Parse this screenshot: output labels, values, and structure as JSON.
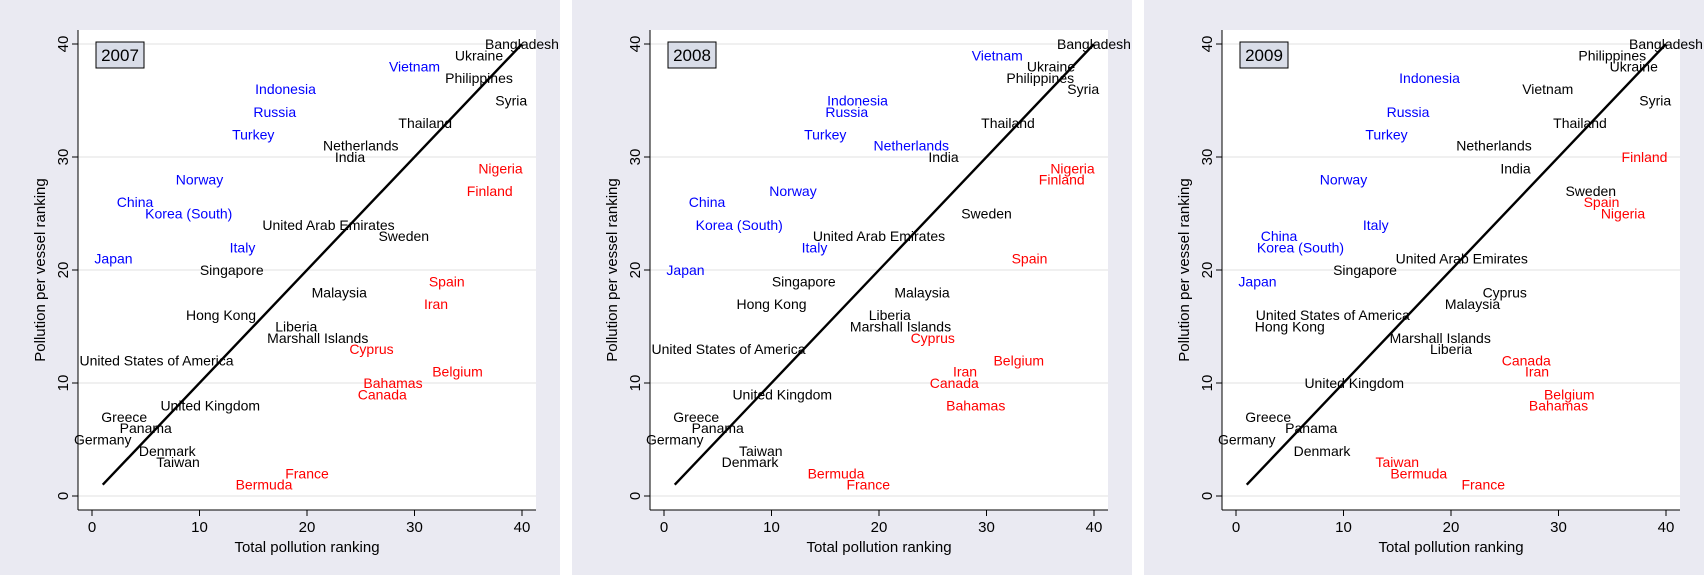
{
  "colors": {
    "background": "#eaeaf2",
    "plot": "#ffffff",
    "grid": "#e0e0e0",
    "black": "#000000",
    "blue": "#0000ff",
    "red": "#ff0000"
  },
  "chart_data": [
    {
      "type": "scatter",
      "panel_label": "2007",
      "xlabel": "Total pollution ranking",
      "ylabel": "Pollution per vessel ranking",
      "xlim": [
        0,
        40
      ],
      "ylim": [
        0,
        40
      ],
      "xticks": [
        0,
        10,
        20,
        30,
        40
      ],
      "yticks": [
        0,
        10,
        20,
        30,
        40
      ],
      "grid": true,
      "reference_line": [
        [
          1,
          1
        ],
        [
          40,
          40
        ]
      ],
      "points": [
        {
          "label": "Bangladesh",
          "x": 40,
          "y": 40,
          "color": "black"
        },
        {
          "label": "Ukraine",
          "x": 36,
          "y": 39,
          "color": "black"
        },
        {
          "label": "Vietnam",
          "x": 30,
          "y": 38,
          "color": "blue"
        },
        {
          "label": "Philippines",
          "x": 36,
          "y": 37,
          "color": "black"
        },
        {
          "label": "Indonesia",
          "x": 18,
          "y": 36,
          "color": "blue"
        },
        {
          "label": "Syria",
          "x": 39,
          "y": 35,
          "color": "black"
        },
        {
          "label": "Russia",
          "x": 17,
          "y": 34,
          "color": "blue"
        },
        {
          "label": "Thailand",
          "x": 31,
          "y": 33,
          "color": "black"
        },
        {
          "label": "Turkey",
          "x": 15,
          "y": 32,
          "color": "blue"
        },
        {
          "label": "Netherlands",
          "x": 25,
          "y": 31,
          "color": "black"
        },
        {
          "label": "India",
          "x": 24,
          "y": 30,
          "color": "black"
        },
        {
          "label": "Nigeria",
          "x": 38,
          "y": 29,
          "color": "red"
        },
        {
          "label": "Norway",
          "x": 10,
          "y": 28,
          "color": "blue"
        },
        {
          "label": "Finland",
          "x": 37,
          "y": 27,
          "color": "red"
        },
        {
          "label": "China",
          "x": 4,
          "y": 26,
          "color": "blue"
        },
        {
          "label": "Korea (South)",
          "x": 9,
          "y": 25,
          "color": "blue"
        },
        {
          "label": "United Arab Emirates",
          "x": 22,
          "y": 24,
          "color": "black"
        },
        {
          "label": "Sweden",
          "x": 29,
          "y": 23,
          "color": "black"
        },
        {
          "label": "Italy",
          "x": 14,
          "y": 22,
          "color": "blue"
        },
        {
          "label": "Japan",
          "x": 2,
          "y": 21,
          "color": "blue"
        },
        {
          "label": "Singapore",
          "x": 13,
          "y": 20,
          "color": "black"
        },
        {
          "label": "Spain",
          "x": 33,
          "y": 19,
          "color": "red"
        },
        {
          "label": "Malaysia",
          "x": 23,
          "y": 18,
          "color": "black"
        },
        {
          "label": "Iran",
          "x": 32,
          "y": 17,
          "color": "red"
        },
        {
          "label": "Hong Kong",
          "x": 12,
          "y": 16,
          "color": "black"
        },
        {
          "label": "Liberia",
          "x": 19,
          "y": 15,
          "color": "black"
        },
        {
          "label": "Marshall Islands",
          "x": 21,
          "y": 14,
          "color": "black"
        },
        {
          "label": "Cyprus",
          "x": 26,
          "y": 13,
          "color": "red"
        },
        {
          "label": "United States of America",
          "x": 6,
          "y": 12,
          "color": "black"
        },
        {
          "label": "Belgium",
          "x": 34,
          "y": 11,
          "color": "red"
        },
        {
          "label": "Bahamas",
          "x": 28,
          "y": 10,
          "color": "red"
        },
        {
          "label": "Canada",
          "x": 27,
          "y": 9,
          "color": "red"
        },
        {
          "label": "United Kingdom",
          "x": 11,
          "y": 8,
          "color": "black"
        },
        {
          "label": "Greece",
          "x": 3,
          "y": 7,
          "color": "black"
        },
        {
          "label": "Panama",
          "x": 5,
          "y": 6,
          "color": "black"
        },
        {
          "label": "Germany",
          "x": 1,
          "y": 5,
          "color": "black"
        },
        {
          "label": "Denmark",
          "x": 7,
          "y": 4,
          "color": "black"
        },
        {
          "label": "Taiwan",
          "x": 8,
          "y": 3,
          "color": "black"
        },
        {
          "label": "France",
          "x": 20,
          "y": 2,
          "color": "red"
        },
        {
          "label": "Bermuda",
          "x": 16,
          "y": 1,
          "color": "red"
        }
      ]
    },
    {
      "type": "scatter",
      "panel_label": "2008",
      "xlabel": "Total pollution ranking",
      "ylabel": "Pollution per vessel ranking",
      "xlim": [
        0,
        40
      ],
      "ylim": [
        0,
        40
      ],
      "xticks": [
        0,
        10,
        20,
        30,
        40
      ],
      "yticks": [
        0,
        10,
        20,
        30,
        40
      ],
      "grid": true,
      "reference_line": [
        [
          1,
          1
        ],
        [
          40,
          40
        ]
      ],
      "points": [
        {
          "label": "Bangladesh",
          "x": 40,
          "y": 40,
          "color": "black"
        },
        {
          "label": "Vietnam",
          "x": 31,
          "y": 39,
          "color": "blue"
        },
        {
          "label": "Ukraine",
          "x": 36,
          "y": 38,
          "color": "black"
        },
        {
          "label": "Philippines",
          "x": 35,
          "y": 37,
          "color": "black"
        },
        {
          "label": "Syria",
          "x": 39,
          "y": 36,
          "color": "black"
        },
        {
          "label": "Indonesia",
          "x": 18,
          "y": 35,
          "color": "blue"
        },
        {
          "label": "Russia",
          "x": 17,
          "y": 34,
          "color": "blue"
        },
        {
          "label": "Thailand",
          "x": 32,
          "y": 33,
          "color": "black"
        },
        {
          "label": "Turkey",
          "x": 15,
          "y": 32,
          "color": "blue"
        },
        {
          "label": "Netherlands",
          "x": 23,
          "y": 31,
          "color": "blue"
        },
        {
          "label": "India",
          "x": 26,
          "y": 30,
          "color": "black"
        },
        {
          "label": "Nigeria",
          "x": 38,
          "y": 29,
          "color": "red"
        },
        {
          "label": "Finland",
          "x": 37,
          "y": 28,
          "color": "red"
        },
        {
          "label": "Norway",
          "x": 12,
          "y": 27,
          "color": "blue"
        },
        {
          "label": "China",
          "x": 4,
          "y": 26,
          "color": "blue"
        },
        {
          "label": "Sweden",
          "x": 30,
          "y": 25,
          "color": "black"
        },
        {
          "label": "Korea (South)",
          "x": 7,
          "y": 24,
          "color": "blue"
        },
        {
          "label": "United Arab Emirates",
          "x": 20,
          "y": 23,
          "color": "black"
        },
        {
          "label": "Italy",
          "x": 14,
          "y": 22,
          "color": "blue"
        },
        {
          "label": "Spain",
          "x": 34,
          "y": 21,
          "color": "red"
        },
        {
          "label": "Japan",
          "x": 2,
          "y": 20,
          "color": "blue"
        },
        {
          "label": "Singapore",
          "x": 13,
          "y": 19,
          "color": "black"
        },
        {
          "label": "Malaysia",
          "x": 24,
          "y": 18,
          "color": "black"
        },
        {
          "label": "Hong Kong",
          "x": 10,
          "y": 17,
          "color": "black"
        },
        {
          "label": "Liberia",
          "x": 21,
          "y": 16,
          "color": "black"
        },
        {
          "label": "Marshall Islands",
          "x": 22,
          "y": 15,
          "color": "black"
        },
        {
          "label": "Cyprus",
          "x": 25,
          "y": 14,
          "color": "red"
        },
        {
          "label": "United States of America",
          "x": 6,
          "y": 13,
          "color": "black"
        },
        {
          "label": "Belgium",
          "x": 33,
          "y": 12,
          "color": "red"
        },
        {
          "label": "Iran",
          "x": 28,
          "y": 11,
          "color": "red"
        },
        {
          "label": "Canada",
          "x": 27,
          "y": 10,
          "color": "red"
        },
        {
          "label": "United Kingdom",
          "x": 11,
          "y": 9,
          "color": "black"
        },
        {
          "label": "Bahamas",
          "x": 29,
          "y": 8,
          "color": "red"
        },
        {
          "label": "Greece",
          "x": 3,
          "y": 7,
          "color": "black"
        },
        {
          "label": "Panama",
          "x": 5,
          "y": 6,
          "color": "black"
        },
        {
          "label": "Germany",
          "x": 1,
          "y": 5,
          "color": "black"
        },
        {
          "label": "Taiwan",
          "x": 9,
          "y": 4,
          "color": "black"
        },
        {
          "label": "Denmark",
          "x": 8,
          "y": 3,
          "color": "black"
        },
        {
          "label": "Bermuda",
          "x": 16,
          "y": 2,
          "color": "red"
        },
        {
          "label": "France",
          "x": 19,
          "y": 1,
          "color": "red"
        }
      ]
    },
    {
      "type": "scatter",
      "panel_label": "2009",
      "xlabel": "Total pollution ranking",
      "ylabel": "Pollution per vessel ranking",
      "xlim": [
        0,
        40
      ],
      "ylim": [
        0,
        40
      ],
      "xticks": [
        0,
        10,
        20,
        30,
        40
      ],
      "yticks": [
        0,
        10,
        20,
        30,
        40
      ],
      "grid": true,
      "reference_line": [
        [
          1,
          1
        ],
        [
          40,
          40
        ]
      ],
      "points": [
        {
          "label": "Bangladesh",
          "x": 40,
          "y": 40,
          "color": "black"
        },
        {
          "label": "Philippines",
          "x": 35,
          "y": 39,
          "color": "black"
        },
        {
          "label": "Ukraine",
          "x": 37,
          "y": 38,
          "color": "black"
        },
        {
          "label": "Indonesia",
          "x": 18,
          "y": 37,
          "color": "blue"
        },
        {
          "label": "Vietnam",
          "x": 29,
          "y": 36,
          "color": "black"
        },
        {
          "label": "Syria",
          "x": 39,
          "y": 35,
          "color": "black"
        },
        {
          "label": "Russia",
          "x": 16,
          "y": 34,
          "color": "blue"
        },
        {
          "label": "Thailand",
          "x": 32,
          "y": 33,
          "color": "black"
        },
        {
          "label": "Turkey",
          "x": 14,
          "y": 32,
          "color": "blue"
        },
        {
          "label": "Netherlands",
          "x": 24,
          "y": 31,
          "color": "black"
        },
        {
          "label": "Finland",
          "x": 38,
          "y": 30,
          "color": "red"
        },
        {
          "label": "India",
          "x": 26,
          "y": 29,
          "color": "black"
        },
        {
          "label": "Norway",
          "x": 10,
          "y": 28,
          "color": "blue"
        },
        {
          "label": "Sweden",
          "x": 33,
          "y": 27,
          "color": "black"
        },
        {
          "label": "Spain",
          "x": 34,
          "y": 26,
          "color": "red"
        },
        {
          "label": "Nigeria",
          "x": 36,
          "y": 25,
          "color": "red"
        },
        {
          "label": "Italy",
          "x": 13,
          "y": 24,
          "color": "blue"
        },
        {
          "label": "China",
          "x": 4,
          "y": 23,
          "color": "blue"
        },
        {
          "label": "Korea (South)",
          "x": 6,
          "y": 22,
          "color": "blue"
        },
        {
          "label": "United Arab Emirates",
          "x": 21,
          "y": 21,
          "color": "black"
        },
        {
          "label": "Singapore",
          "x": 12,
          "y": 20,
          "color": "black"
        },
        {
          "label": "Japan",
          "x": 2,
          "y": 19,
          "color": "blue"
        },
        {
          "label": "Cyprus",
          "x": 25,
          "y": 18,
          "color": "black"
        },
        {
          "label": "Malaysia",
          "x": 22,
          "y": 17,
          "color": "black"
        },
        {
          "label": "United States of America",
          "x": 9,
          "y": 16,
          "color": "black"
        },
        {
          "label": "Hong Kong",
          "x": 5,
          "y": 15,
          "color": "black"
        },
        {
          "label": "Marshall Islands",
          "x": 19,
          "y": 14,
          "color": "black"
        },
        {
          "label": "Liberia",
          "x": 20,
          "y": 13,
          "color": "black"
        },
        {
          "label": "Canada",
          "x": 27,
          "y": 12,
          "color": "red"
        },
        {
          "label": "Iran",
          "x": 28,
          "y": 11,
          "color": "red"
        },
        {
          "label": "United Kingdom",
          "x": 11,
          "y": 10,
          "color": "black"
        },
        {
          "label": "Belgium",
          "x": 31,
          "y": 9,
          "color": "red"
        },
        {
          "label": "Bahamas",
          "x": 30,
          "y": 8,
          "color": "red"
        },
        {
          "label": "Greece",
          "x": 3,
          "y": 7,
          "color": "black"
        },
        {
          "label": "Panama",
          "x": 7,
          "y": 6,
          "color": "black"
        },
        {
          "label": "Germany",
          "x": 1,
          "y": 5,
          "color": "black"
        },
        {
          "label": "Denmark",
          "x": 8,
          "y": 4,
          "color": "black"
        },
        {
          "label": "Taiwan",
          "x": 15,
          "y": 3,
          "color": "red"
        },
        {
          "label": "Bermuda",
          "x": 17,
          "y": 2,
          "color": "red"
        },
        {
          "label": "France",
          "x": 23,
          "y": 1,
          "color": "red"
        }
      ]
    }
  ]
}
